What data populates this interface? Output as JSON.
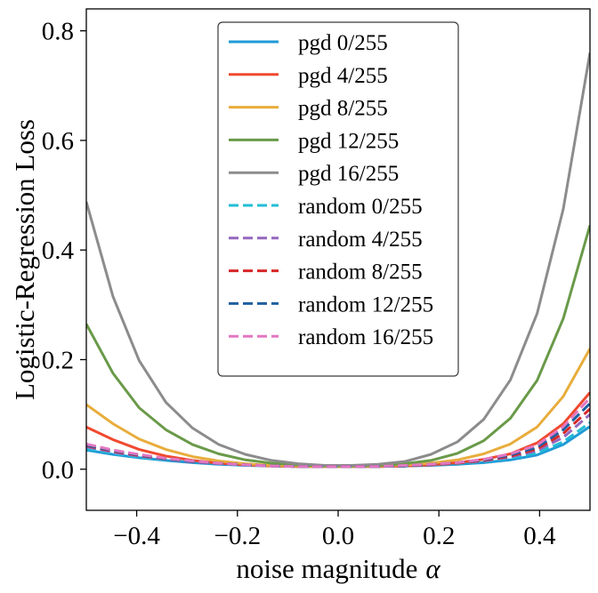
{
  "chart_data": {
    "type": "line",
    "title": "",
    "xlabel": "noise magnitude",
    "xlabel_symbol": "α",
    "ylabel": "Logistic-Regression Loss",
    "xlim": [
      -0.5,
      0.5
    ],
    "ylim": [
      -0.075,
      0.84
    ],
    "xticks": [
      -0.4,
      -0.2,
      0.0,
      0.2,
      0.4
    ],
    "xtick_labels": [
      "−0.4",
      "−0.2",
      "0.0",
      "0.2",
      "0.4"
    ],
    "yticks": [
      0.0,
      0.2,
      0.4,
      0.6,
      0.8
    ],
    "ytick_labels": [
      "0.0",
      "0.2",
      "0.4",
      "0.6",
      "0.8"
    ],
    "grid": false,
    "legend_position": "top-center",
    "x": [
      -0.5,
      -0.447,
      -0.395,
      -0.342,
      -0.289,
      -0.237,
      -0.184,
      -0.132,
      -0.079,
      -0.026,
      0.026,
      0.079,
      0.132,
      0.184,
      0.237,
      0.289,
      0.342,
      0.395,
      0.447,
      0.5
    ],
    "series": [
      {
        "name": "pgd 0/255",
        "color": "#1f9ad6",
        "style": "solid",
        "values": [
          0.035,
          0.027,
          0.021,
          0.016,
          0.012,
          0.009,
          0.007,
          0.006,
          0.005,
          0.005,
          0.005,
          0.005,
          0.006,
          0.007,
          0.009,
          0.012,
          0.017,
          0.026,
          0.045,
          0.078
        ]
      },
      {
        "name": "pgd 4/255",
        "color": "#f0492f",
        "style": "solid",
        "values": [
          0.077,
          0.054,
          0.036,
          0.024,
          0.016,
          0.011,
          0.008,
          0.006,
          0.005,
          0.005,
          0.005,
          0.005,
          0.006,
          0.008,
          0.012,
          0.018,
          0.028,
          0.048,
          0.083,
          0.14
        ]
      },
      {
        "name": "pgd 8/255",
        "color": "#e8ad3c",
        "style": "solid",
        "values": [
          0.118,
          0.083,
          0.055,
          0.036,
          0.023,
          0.015,
          0.01,
          0.007,
          0.006,
          0.005,
          0.005,
          0.006,
          0.008,
          0.011,
          0.017,
          0.028,
          0.046,
          0.077,
          0.133,
          0.22
        ]
      },
      {
        "name": "pgd 12/255",
        "color": "#6a9a49",
        "style": "solid",
        "values": [
          0.265,
          0.175,
          0.112,
          0.072,
          0.045,
          0.028,
          0.017,
          0.011,
          0.008,
          0.006,
          0.006,
          0.007,
          0.01,
          0.016,
          0.029,
          0.052,
          0.093,
          0.162,
          0.275,
          0.445
        ]
      },
      {
        "name": "pgd 16/255",
        "color": "#8c8c8c",
        "style": "solid",
        "values": [
          0.488,
          0.315,
          0.198,
          0.122,
          0.075,
          0.045,
          0.027,
          0.016,
          0.01,
          0.007,
          0.007,
          0.009,
          0.014,
          0.027,
          0.05,
          0.091,
          0.163,
          0.284,
          0.475,
          0.76
        ]
      },
      {
        "name": "random 0/255",
        "color": "#22bcd6",
        "style": "dashed",
        "values": [
          0.038,
          0.029,
          0.022,
          0.017,
          0.013,
          0.01,
          0.008,
          0.006,
          0.005,
          0.005,
          0.005,
          0.005,
          0.006,
          0.008,
          0.01,
          0.014,
          0.02,
          0.03,
          0.05,
          0.085
        ]
      },
      {
        "name": "random 4/255",
        "color": "#9467bd",
        "style": "dashed",
        "values": [
          0.041,
          0.031,
          0.024,
          0.018,
          0.013,
          0.01,
          0.008,
          0.006,
          0.005,
          0.005,
          0.005,
          0.005,
          0.006,
          0.008,
          0.011,
          0.015,
          0.022,
          0.034,
          0.058,
          0.1
        ]
      },
      {
        "name": "random 8/255",
        "color": "#d62728",
        "style": "dashed",
        "values": [
          0.043,
          0.033,
          0.025,
          0.019,
          0.014,
          0.011,
          0.008,
          0.006,
          0.005,
          0.005,
          0.005,
          0.005,
          0.006,
          0.008,
          0.011,
          0.016,
          0.024,
          0.037,
          0.065,
          0.11
        ]
      },
      {
        "name": "random 12/255",
        "color": "#1f5fa0",
        "style": "dashed",
        "values": [
          0.044,
          0.034,
          0.026,
          0.019,
          0.014,
          0.011,
          0.008,
          0.006,
          0.005,
          0.005,
          0.005,
          0.005,
          0.006,
          0.009,
          0.012,
          0.017,
          0.026,
          0.04,
          0.072,
          0.12
        ]
      },
      {
        "name": "random 16/255",
        "color": "#e377c2",
        "style": "dashed",
        "values": [
          0.046,
          0.035,
          0.027,
          0.02,
          0.015,
          0.011,
          0.008,
          0.006,
          0.005,
          0.005,
          0.005,
          0.005,
          0.007,
          0.009,
          0.012,
          0.018,
          0.028,
          0.044,
          0.078,
          0.13
        ]
      }
    ]
  }
}
